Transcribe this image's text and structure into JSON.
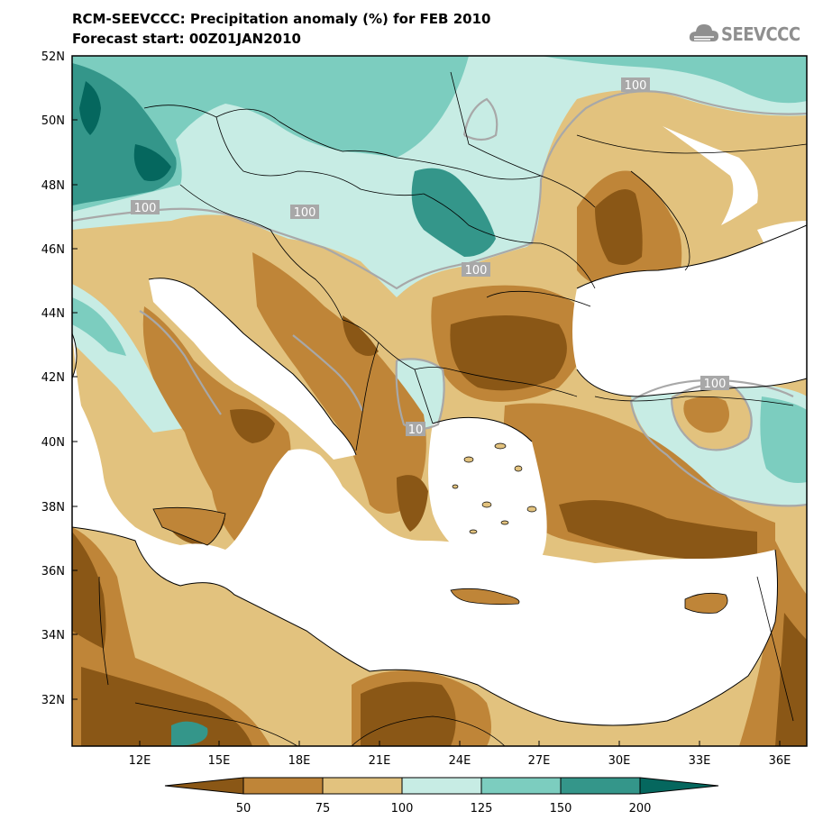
{
  "title": {
    "line1": "RCM-SEEVCCC: Precipitation anomaly (%) for FEB 2010",
    "line2": "Forecast start: 00Z01JAN2010"
  },
  "logo": {
    "text": "SEEVCCC",
    "icon": "cloud-icon"
  },
  "map": {
    "lat_ticks": [
      "52N",
      "50N",
      "48N",
      "46N",
      "44N",
      "42N",
      "40N",
      "38N",
      "36N",
      "34N",
      "32N"
    ],
    "lon_ticks": [
      "12E",
      "15E",
      "18E",
      "21E",
      "24E",
      "27E",
      "30E",
      "33E",
      "36E"
    ],
    "contour_labels": [
      "100",
      "100",
      "100",
      "100",
      "100",
      "10"
    ]
  },
  "colorbar": {
    "labels": [
      "50",
      "75",
      "100",
      "125",
      "150",
      "200"
    ],
    "colors": [
      "#8a5716",
      "#bf8538",
      "#e2c27e",
      "#c7ece4",
      "#7ccdbf",
      "#34968a",
      "#05675e"
    ]
  },
  "colors": {
    "sea": "#ffffff",
    "dry_strong": "#8a5716",
    "dry": "#bf8538",
    "dry_light": "#e2c27e",
    "wet_light": "#c7ece4",
    "wet": "#7ccdbf",
    "wet_strong": "#34968a",
    "wet_very": "#05675e",
    "contour": "#a8a8a8"
  }
}
